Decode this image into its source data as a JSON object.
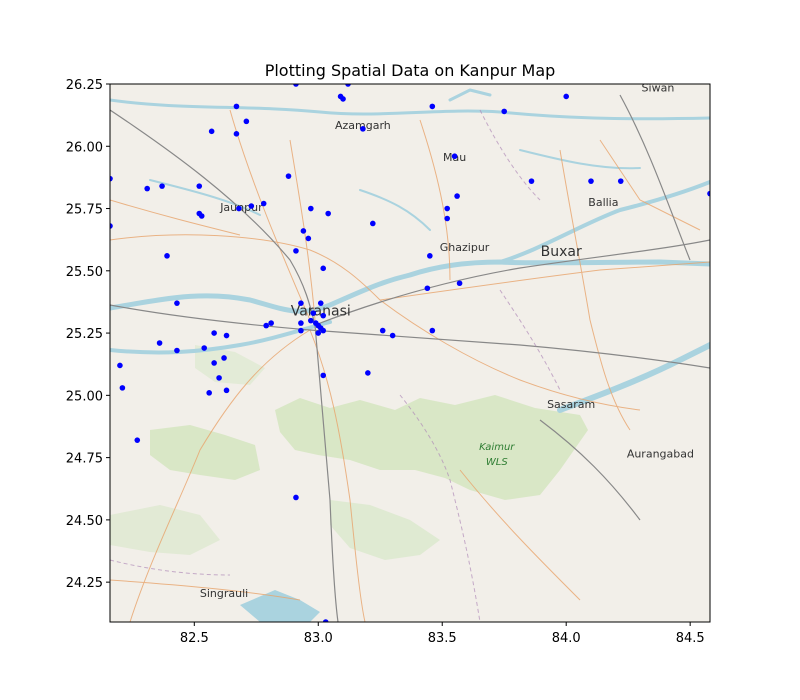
{
  "chart_data": {
    "type": "scatter",
    "title": "Plotting Spatial Data on Kanpur Map",
    "xlabel": "",
    "ylabel": "",
    "xlim": [
      82.16,
      84.58
    ],
    "ylim": [
      24.09,
      26.25
    ],
    "xticks": [
      "82.5",
      "83.0",
      "83.5",
      "84.0",
      "84.5"
    ],
    "yticks": [
      "24.25",
      "24.50",
      "24.75",
      "25.00",
      "25.25",
      "25.50",
      "25.75",
      "26.00",
      "26.25"
    ],
    "grid": false,
    "legend": "none",
    "point_color": "#0000ff",
    "basemap": {
      "land_color": "#f2efe9",
      "forest_color": "#d6e6c2",
      "water_color": "#aad3df",
      "places": [
        {
          "name": "Siwan",
          "lon": 84.37,
          "lat": 26.22,
          "size": "small"
        },
        {
          "name": "Azamgarh",
          "lon": 83.18,
          "lat": 26.07,
          "size": "small"
        },
        {
          "name": "Mau",
          "lon": 83.55,
          "lat": 25.94,
          "size": "small"
        },
        {
          "name": "Ballia",
          "lon": 84.15,
          "lat": 25.76,
          "size": "small"
        },
        {
          "name": "Jaunpur",
          "lon": 82.69,
          "lat": 25.74,
          "size": "small"
        },
        {
          "name": "Ghazipur",
          "lon": 83.59,
          "lat": 25.58,
          "size": "small"
        },
        {
          "name": "Buxar",
          "lon": 83.98,
          "lat": 25.56,
          "size": "big"
        },
        {
          "name": "Varanasi",
          "lon": 83.01,
          "lat": 25.32,
          "size": "big"
        },
        {
          "name": "Sasaram",
          "lon": 84.02,
          "lat": 24.95,
          "size": "small"
        },
        {
          "name": "Kaimur",
          "lon": 83.72,
          "lat": 24.78,
          "size": "park"
        },
        {
          "name": "WLS",
          "lon": 83.72,
          "lat": 24.72,
          "size": "park"
        },
        {
          "name": "Aurangabad",
          "lon": 84.38,
          "lat": 24.75,
          "size": "small"
        },
        {
          "name": "Singrauli",
          "lon": 82.62,
          "lat": 24.19,
          "size": "small"
        }
      ]
    },
    "points": [
      {
        "x": 82.91,
        "y": 26.25
      },
      {
        "x": 83.12,
        "y": 26.25
      },
      {
        "x": 83.09,
        "y": 26.2
      },
      {
        "x": 83.1,
        "y": 26.19
      },
      {
        "x": 82.67,
        "y": 26.16
      },
      {
        "x": 83.46,
        "y": 26.16
      },
      {
        "x": 83.75,
        "y": 26.14
      },
      {
        "x": 84.0,
        "y": 26.2
      },
      {
        "x": 82.71,
        "y": 26.1
      },
      {
        "x": 82.57,
        "y": 26.06
      },
      {
        "x": 82.67,
        "y": 26.05
      },
      {
        "x": 83.18,
        "y": 26.07
      },
      {
        "x": 83.55,
        "y": 25.96
      },
      {
        "x": 82.16,
        "y": 25.87
      },
      {
        "x": 82.31,
        "y": 25.83
      },
      {
        "x": 82.37,
        "y": 25.84
      },
      {
        "x": 82.52,
        "y": 25.84
      },
      {
        "x": 82.88,
        "y": 25.88
      },
      {
        "x": 83.86,
        "y": 25.86
      },
      {
        "x": 84.1,
        "y": 25.86
      },
      {
        "x": 84.22,
        "y": 25.86
      },
      {
        "x": 84.58,
        "y": 25.81
      },
      {
        "x": 83.56,
        "y": 25.8
      },
      {
        "x": 82.52,
        "y": 25.73
      },
      {
        "x": 82.53,
        "y": 25.72
      },
      {
        "x": 82.68,
        "y": 25.75
      },
      {
        "x": 82.73,
        "y": 25.76
      },
      {
        "x": 82.78,
        "y": 25.77
      },
      {
        "x": 82.97,
        "y": 25.75
      },
      {
        "x": 83.04,
        "y": 25.73
      },
      {
        "x": 83.52,
        "y": 25.75
      },
      {
        "x": 83.52,
        "y": 25.71
      },
      {
        "x": 82.16,
        "y": 25.68
      },
      {
        "x": 82.94,
        "y": 25.66
      },
      {
        "x": 82.96,
        "y": 25.63
      },
      {
        "x": 83.22,
        "y": 25.69
      },
      {
        "x": 82.91,
        "y": 25.58
      },
      {
        "x": 82.39,
        "y": 25.56
      },
      {
        "x": 83.45,
        "y": 25.56
      },
      {
        "x": 83.02,
        "y": 25.51
      },
      {
        "x": 83.57,
        "y": 25.45
      },
      {
        "x": 83.44,
        "y": 25.43
      },
      {
        "x": 82.43,
        "y": 25.37
      },
      {
        "x": 82.93,
        "y": 25.37
      },
      {
        "x": 83.01,
        "y": 25.37
      },
      {
        "x": 82.98,
        "y": 25.33
      },
      {
        "x": 83.02,
        "y": 25.32
      },
      {
        "x": 82.81,
        "y": 25.29
      },
      {
        "x": 82.93,
        "y": 25.29
      },
      {
        "x": 82.97,
        "y": 25.3
      },
      {
        "x": 82.79,
        "y": 25.28
      },
      {
        "x": 82.99,
        "y": 25.29
      },
      {
        "x": 83.0,
        "y": 25.28
      },
      {
        "x": 82.93,
        "y": 25.26
      },
      {
        "x": 83.01,
        "y": 25.27
      },
      {
        "x": 83.02,
        "y": 25.26
      },
      {
        "x": 83.0,
        "y": 25.25
      },
      {
        "x": 82.58,
        "y": 25.25
      },
      {
        "x": 82.63,
        "y": 25.24
      },
      {
        "x": 83.26,
        "y": 25.26
      },
      {
        "x": 83.3,
        "y": 25.24
      },
      {
        "x": 83.46,
        "y": 25.26
      },
      {
        "x": 82.36,
        "y": 25.21
      },
      {
        "x": 82.43,
        "y": 25.18
      },
      {
        "x": 82.54,
        "y": 25.19
      },
      {
        "x": 82.58,
        "y": 25.13
      },
      {
        "x": 82.62,
        "y": 25.15
      },
      {
        "x": 82.2,
        "y": 25.12
      },
      {
        "x": 82.6,
        "y": 25.07
      },
      {
        "x": 83.02,
        "y": 25.08
      },
      {
        "x": 83.2,
        "y": 25.09
      },
      {
        "x": 82.21,
        "y": 25.03
      },
      {
        "x": 82.56,
        "y": 25.01
      },
      {
        "x": 82.63,
        "y": 25.02
      },
      {
        "x": 82.27,
        "y": 24.82
      },
      {
        "x": 82.91,
        "y": 24.59
      },
      {
        "x": 83.03,
        "y": 24.09
      }
    ]
  }
}
